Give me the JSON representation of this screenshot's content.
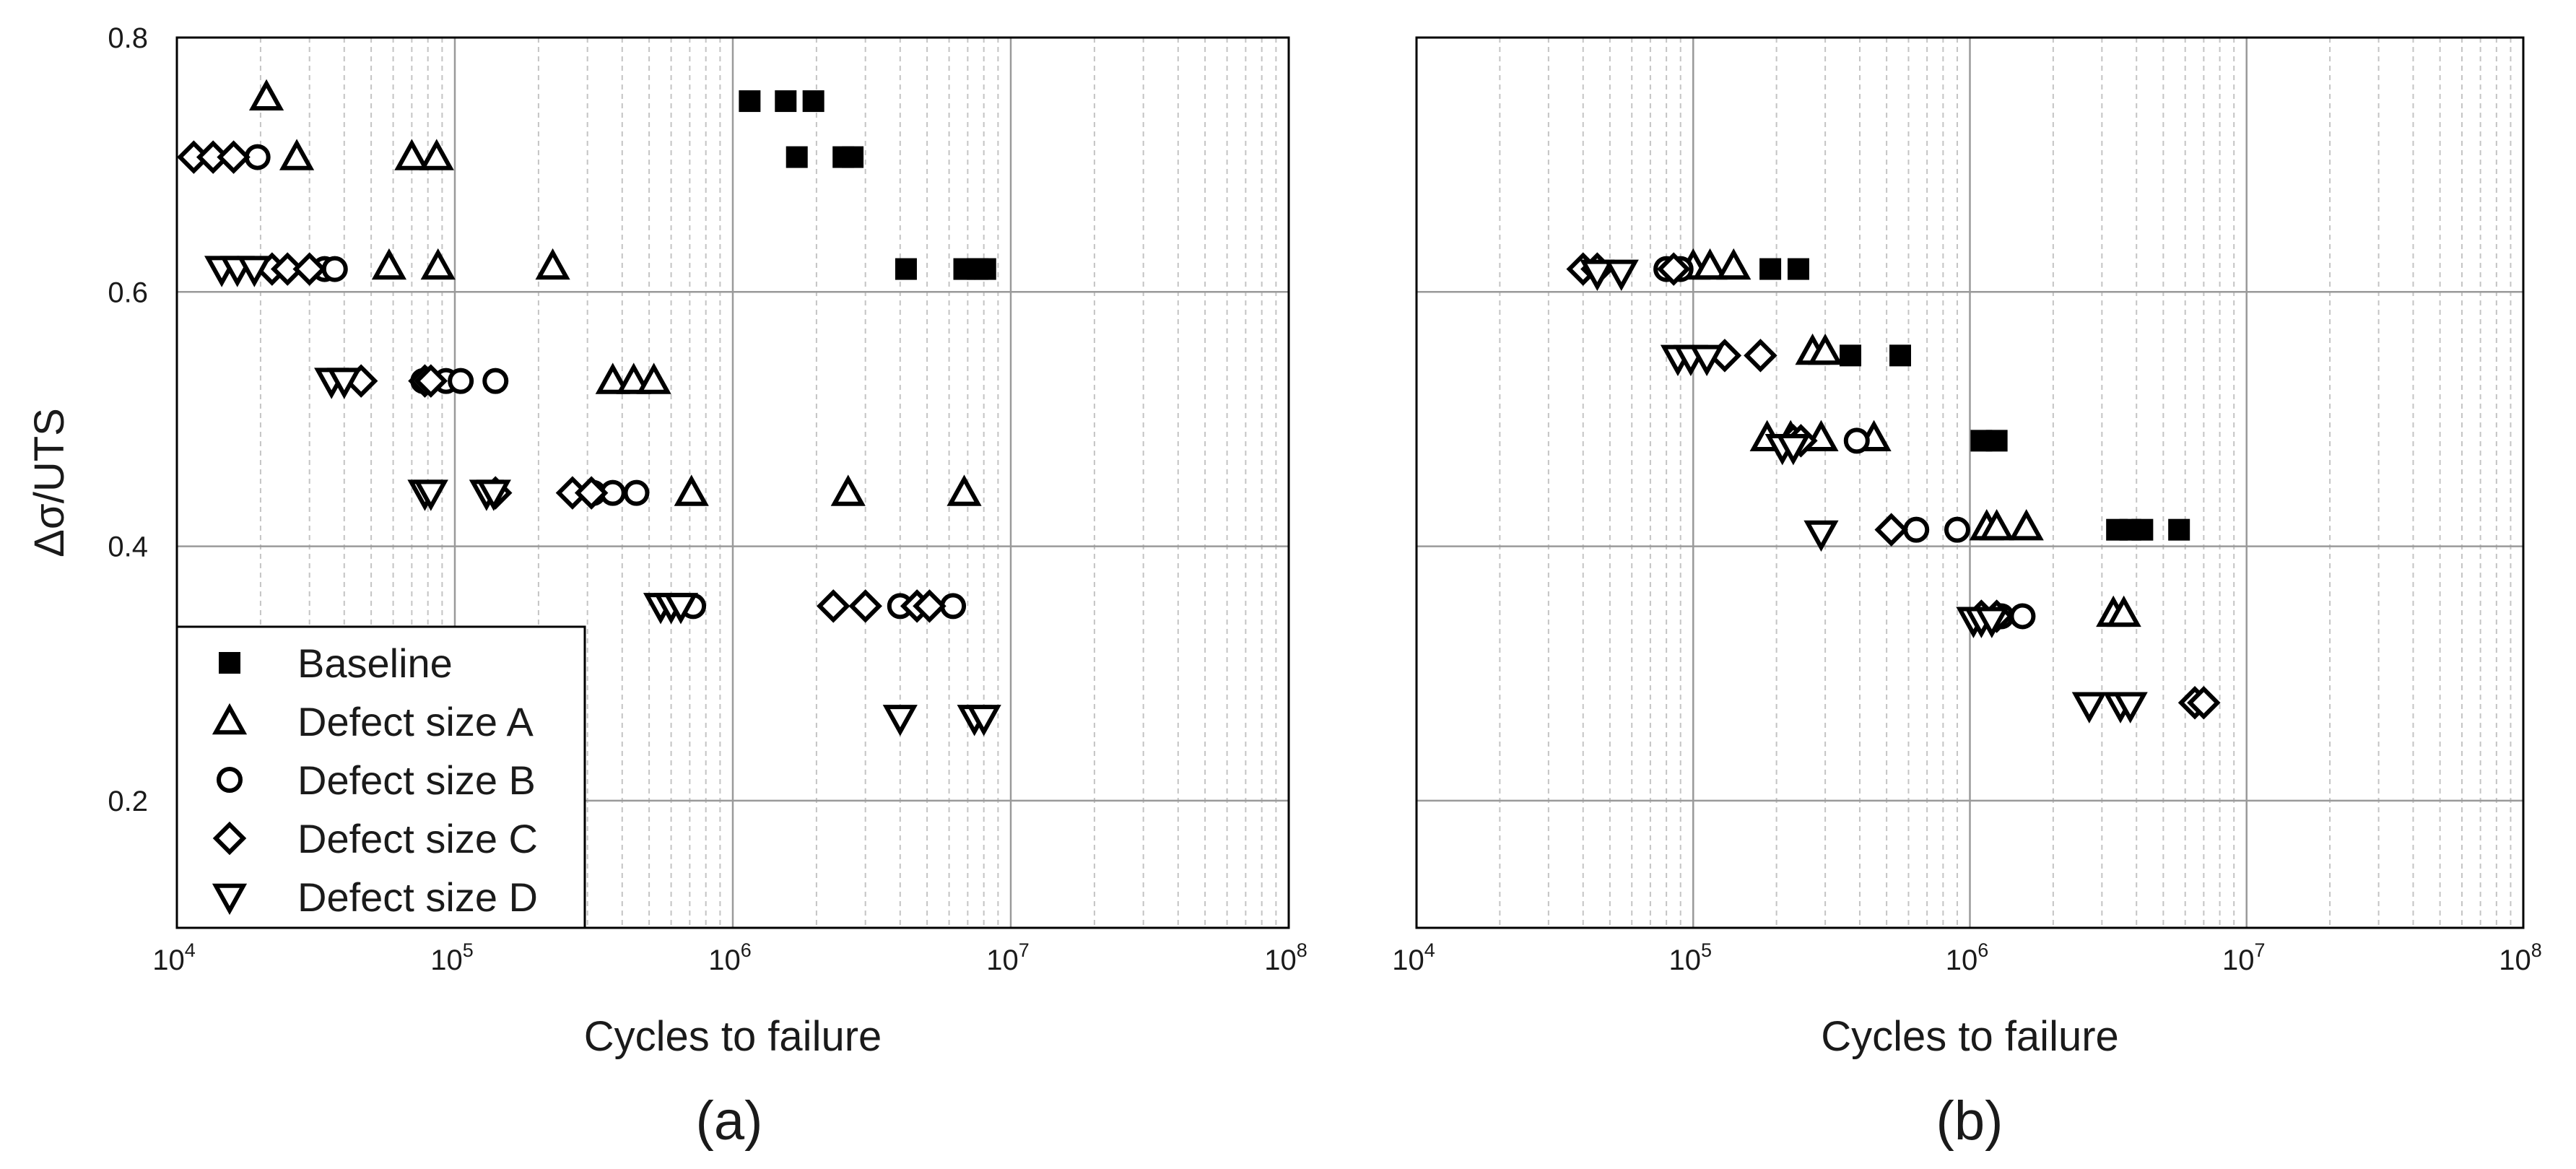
{
  "chart_data": [
    {
      "type": "scatter",
      "panel_label": "(a)",
      "xlabel": "Cycles to failure",
      "ylabel": "Δσ/UTS",
      "xscale": "log",
      "xlim": [
        10000,
        100000000
      ],
      "ylim": [
        0.1,
        0.8
      ],
      "x_tick_labels": [
        {
          "base": "10",
          "exp": "4"
        },
        {
          "base": "10",
          "exp": "5"
        },
        {
          "base": "10",
          "exp": "6"
        },
        {
          "base": "10",
          "exp": "7"
        },
        {
          "base": "10",
          "exp": "8"
        }
      ],
      "y_tick_labels": [
        "0.2",
        "0.4",
        "0.6",
        "0.8"
      ],
      "grid": true,
      "legend_position": "bottom-left",
      "series": [
        {
          "name": "Baseline",
          "marker": "filled-square",
          "points": [
            [
              1150000,
              0.75
            ],
            [
              1550000,
              0.75
            ],
            [
              1950000,
              0.75
            ],
            [
              1700000,
              0.706
            ],
            [
              2500000,
              0.706
            ],
            [
              2700000,
              0.706
            ],
            [
              4200000,
              0.618
            ],
            [
              6800000,
              0.618
            ],
            [
              7600000,
              0.618
            ],
            [
              8100000,
              0.618
            ]
          ]
        },
        {
          "name": "Defect size A",
          "marker": "triangle-up",
          "points": [
            [
              21000,
              0.753
            ],
            [
              27000,
              0.706
            ],
            [
              70000,
              0.706
            ],
            [
              86000,
              0.706
            ],
            [
              58000,
              0.62
            ],
            [
              87000,
              0.62
            ],
            [
              225000,
              0.62
            ],
            [
              370000,
              0.53
            ],
            [
              440000,
              0.53
            ],
            [
              520000,
              0.53
            ],
            [
              710000,
              0.442
            ],
            [
              2600000,
              0.442
            ],
            [
              6800000,
              0.442
            ]
          ]
        },
        {
          "name": "Defect size B",
          "marker": "circle",
          "points": [
            [
              19500,
              0.706
            ],
            [
              34000,
              0.618
            ],
            [
              37000,
              0.618
            ],
            [
              77000,
              0.53
            ],
            [
              93000,
              0.53
            ],
            [
              105000,
              0.53
            ],
            [
              140000,
              0.53
            ],
            [
              315000,
              0.442
            ],
            [
              370000,
              0.442
            ],
            [
              450000,
              0.442
            ],
            [
              720000,
              0.353
            ],
            [
              4000000,
              0.353
            ],
            [
              6200000,
              0.353
            ]
          ]
        },
        {
          "name": "Defect size C",
          "marker": "diamond",
          "points": [
            [
              11500,
              0.706
            ],
            [
              13500,
              0.706
            ],
            [
              16000,
              0.706
            ],
            [
              22000,
              0.618
            ],
            [
              25000,
              0.618
            ],
            [
              30000,
              0.618
            ],
            [
              46000,
              0.53
            ],
            [
              78000,
              0.53
            ],
            [
              82000,
              0.53
            ],
            [
              140000,
              0.442
            ],
            [
              265000,
              0.442
            ],
            [
              310000,
              0.442
            ],
            [
              2300000,
              0.353
            ],
            [
              3000000,
              0.353
            ],
            [
              4600000,
              0.353
            ],
            [
              5100000,
              0.353
            ]
          ]
        },
        {
          "name": "Defect size D",
          "marker": "triangle-down",
          "points": [
            [
              14500,
              0.618
            ],
            [
              16500,
              0.618
            ],
            [
              19000,
              0.618
            ],
            [
              36000,
              0.53
            ],
            [
              40000,
              0.53
            ],
            [
              78000,
              0.442
            ],
            [
              82000,
              0.442
            ],
            [
              130000,
              0.442
            ],
            [
              138000,
              0.442
            ],
            [
              550000,
              0.353
            ],
            [
              600000,
              0.353
            ],
            [
              650000,
              0.353
            ],
            [
              4000000,
              0.265
            ],
            [
              7400000,
              0.265
            ],
            [
              8000000,
              0.265
            ]
          ]
        }
      ],
      "legend": [
        {
          "label": "Baseline",
          "marker": "filled-square"
        },
        {
          "label": "Defect size A",
          "marker": "triangle-up"
        },
        {
          "label": "Defect size B",
          "marker": "circle"
        },
        {
          "label": "Defect size C",
          "marker": "diamond"
        },
        {
          "label": "Defect size D",
          "marker": "triangle-down"
        }
      ]
    },
    {
      "type": "scatter",
      "panel_label": "(b)",
      "xlabel": "Cycles to failure",
      "ylabel": "",
      "xscale": "log",
      "xlim": [
        10000,
        100000000
      ],
      "ylim": [
        0.1,
        0.8
      ],
      "x_tick_labels": [
        {
          "base": "10",
          "exp": "4"
        },
        {
          "base": "10",
          "exp": "5"
        },
        {
          "base": "10",
          "exp": "6"
        },
        {
          "base": "10",
          "exp": "7"
        },
        {
          "base": "10",
          "exp": "8"
        }
      ],
      "y_tick_labels": [],
      "grid": true,
      "series": [
        {
          "name": "Baseline",
          "marker": "filled-square",
          "points": [
            [
              190000,
              0.618
            ],
            [
              240000,
              0.618
            ],
            [
              370000,
              0.55
            ],
            [
              560000,
              0.55
            ],
            [
              1100000,
              0.483
            ],
            [
              1250000,
              0.483
            ],
            [
              3400000,
              0.413
            ],
            [
              3800000,
              0.413
            ],
            [
              4200000,
              0.413
            ],
            [
              5700000,
              0.413
            ]
          ]
        },
        {
          "name": "Defect size A",
          "marker": "triangle-up",
          "points": [
            [
              100000,
              0.62
            ],
            [
              115000,
              0.62
            ],
            [
              140000,
              0.62
            ],
            [
              270000,
              0.553
            ],
            [
              300000,
              0.553
            ],
            [
              185000,
              0.485
            ],
            [
              225000,
              0.485
            ],
            [
              290000,
              0.485
            ],
            [
              450000,
              0.485
            ],
            [
              1150000,
              0.415
            ],
            [
              1250000,
              0.415
            ],
            [
              1600000,
              0.415
            ],
            [
              3300000,
              0.347
            ],
            [
              3600000,
              0.347
            ]
          ]
        },
        {
          "name": "Defect size B",
          "marker": "circle",
          "points": [
            [
              80000,
              0.618
            ],
            [
              90000,
              0.618
            ],
            [
              390000,
              0.483
            ],
            [
              640000,
              0.413
            ],
            [
              900000,
              0.413
            ],
            [
              1300000,
              0.345
            ],
            [
              1550000,
              0.345
            ]
          ]
        },
        {
          "name": "Defect size C",
          "marker": "diamond",
          "points": [
            [
              40000,
              0.618
            ],
            [
              45000,
              0.618
            ],
            [
              85000,
              0.618
            ],
            [
              130000,
              0.55
            ],
            [
              175000,
              0.55
            ],
            [
              230000,
              0.483
            ],
            [
              245000,
              0.483
            ],
            [
              520000,
              0.413
            ],
            [
              1100000,
              0.345
            ],
            [
              1250000,
              0.345
            ],
            [
              6500000,
              0.277
            ],
            [
              7000000,
              0.277
            ]
          ]
        },
        {
          "name": "Defect size D",
          "marker": "triangle-down",
          "points": [
            [
              45000,
              0.615
            ],
            [
              55000,
              0.615
            ],
            [
              88000,
              0.548
            ],
            [
              98000,
              0.548
            ],
            [
              112000,
              0.548
            ],
            [
              210000,
              0.478
            ],
            [
              230000,
              0.478
            ],
            [
              290000,
              0.41
            ],
            [
              1030000,
              0.342
            ],
            [
              1100000,
              0.342
            ],
            [
              1200000,
              0.342
            ],
            [
              2700000,
              0.275
            ],
            [
              3500000,
              0.275
            ],
            [
              3800000,
              0.275
            ]
          ]
        }
      ]
    }
  ]
}
